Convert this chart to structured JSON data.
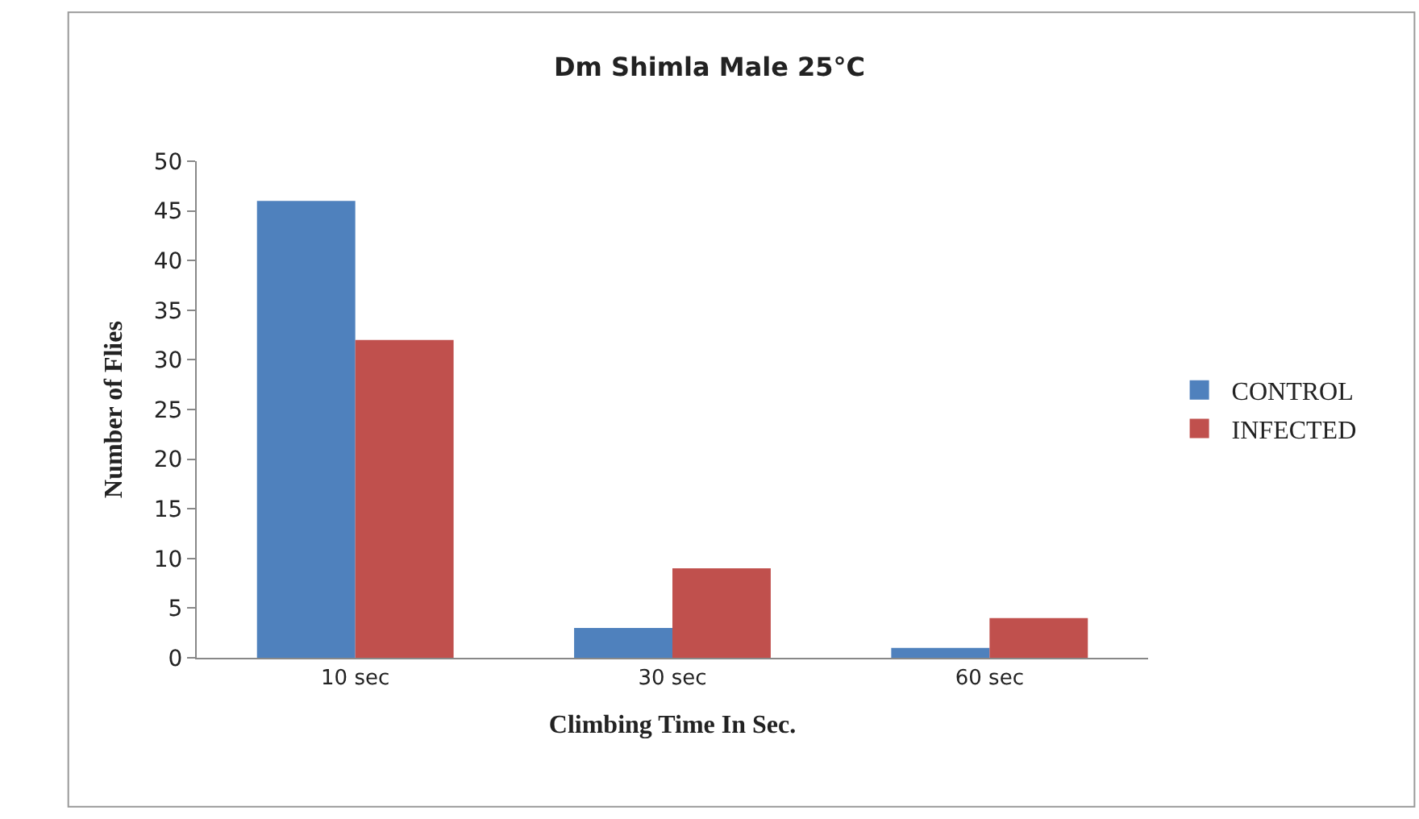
{
  "chart_data": {
    "type": "bar",
    "title": "Dm Shimla Male 25°C",
    "xlabel": "Climbing Time In Sec.",
    "ylabel": "Number of Flies",
    "categories": [
      "10 sec",
      "30 sec",
      "60 sec"
    ],
    "series": [
      {
        "name": "CONTROL",
        "color": "#4f81bd",
        "values": [
          46,
          3,
          1
        ]
      },
      {
        "name": "INFECTED",
        "color": "#c0504d",
        "values": [
          32,
          9,
          4
        ]
      }
    ],
    "ylim": [
      0,
      50
    ],
    "yticks": [
      0,
      5,
      10,
      15,
      20,
      25,
      30,
      35,
      40,
      45,
      50
    ],
    "legend": "right"
  }
}
